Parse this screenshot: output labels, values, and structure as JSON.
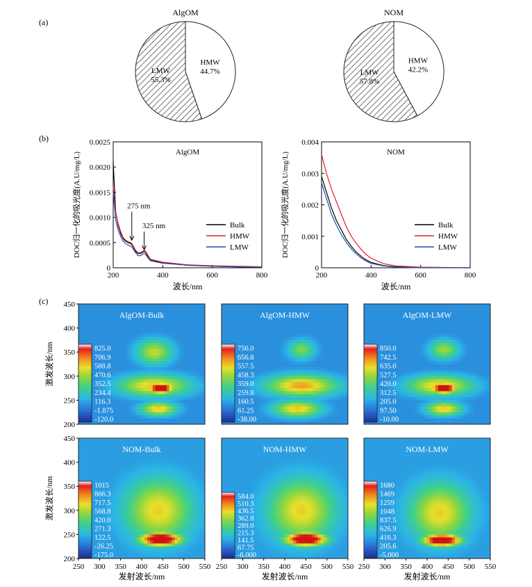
{
  "panel_labels": {
    "a": "(a)",
    "b": "(b)",
    "c": "(c)"
  },
  "chart_data": [
    {
      "type": "pie",
      "title": "AlgOM",
      "slices": [
        {
          "label": "HMW",
          "value": 44.7,
          "value_text": "44.7%",
          "fill": "white"
        },
        {
          "label": "LMW",
          "value": 55.3,
          "value_text": "55.3%",
          "fill": "hatched"
        }
      ]
    },
    {
      "type": "pie",
      "title": "NOM",
      "slices": [
        {
          "label": "HMW",
          "value": 42.2,
          "value_text": "42.2%",
          "fill": "white"
        },
        {
          "label": "LMW",
          "value": 57.8,
          "value_text": "57.8%",
          "fill": "hatched"
        }
      ]
    },
    {
      "type": "line",
      "title": "AlgOM",
      "xlabel": "波长/nm",
      "ylabel": "DOC归一化的吸光度(A.U/mg/L)",
      "xlim": [
        200,
        800
      ],
      "ylim": [
        0,
        0.0025
      ],
      "xticks": [
        "200",
        "400",
        "600",
        "800"
      ],
      "yticks": [
        "0",
        "0.0005",
        "0.0010",
        "0.0015",
        "0.0020",
        "0.0025"
      ],
      "legend_position": "bottom-right",
      "annotations": [
        {
          "text": "275 nm",
          "x": 275,
          "y": 0.00052
        },
        {
          "text": "325 nm",
          "x": 325,
          "y": 0.00033
        }
      ],
      "series": [
        {
          "name": "Bulk",
          "color": "#000000",
          "points": [
            [
              200,
              0.0021
            ],
            [
              210,
              0.0011
            ],
            [
              220,
              0.00085
            ],
            [
              230,
              0.00068
            ],
            [
              240,
              0.00058
            ],
            [
              250,
              0.00053
            ],
            [
              260,
              0.0005
            ],
            [
              270,
              0.00048
            ],
            [
              275,
              0.00046
            ],
            [
              280,
              0.00042
            ],
            [
              290,
              0.00033
            ],
            [
              300,
              0.00028
            ],
            [
              310,
              0.00028
            ],
            [
              320,
              0.00031
            ],
            [
              325,
              0.00032
            ],
            [
              330,
              0.00031
            ],
            [
              340,
              0.00023
            ],
            [
              350,
              0.00016
            ],
            [
              400,
              0.0001
            ],
            [
              500,
              5e-05
            ],
            [
              600,
              3e-05
            ],
            [
              700,
              2e-05
            ],
            [
              800,
              1e-05
            ]
          ]
        },
        {
          "name": "HMW",
          "color": "#e02020",
          "points": [
            [
              200,
              0.0016
            ],
            [
              210,
              0.0011
            ],
            [
              220,
              0.00088
            ],
            [
              230,
              0.00072
            ],
            [
              240,
              0.0006
            ],
            [
              250,
              0.00055
            ],
            [
              260,
              0.00052
            ],
            [
              270,
              0.0005
            ],
            [
              275,
              0.00048
            ],
            [
              280,
              0.00044
            ],
            [
              290,
              0.00035
            ],
            [
              300,
              0.0003
            ],
            [
              310,
              0.0003
            ],
            [
              320,
              0.00033
            ],
            [
              325,
              0.00035
            ],
            [
              330,
              0.00033
            ],
            [
              340,
              0.00025
            ],
            [
              350,
              0.00017
            ],
            [
              400,
              0.00011
            ],
            [
              500,
              6e-05
            ],
            [
              600,
              4e-05
            ],
            [
              700,
              3e-05
            ],
            [
              800,
              2e-05
            ]
          ]
        },
        {
          "name": "LMW",
          "color": "#1f4fb4",
          "points": [
            [
              200,
              0.0015
            ],
            [
              210,
              0.00095
            ],
            [
              220,
              0.00075
            ],
            [
              230,
              0.00062
            ],
            [
              240,
              0.00053
            ],
            [
              250,
              0.00048
            ],
            [
              260,
              0.00045
            ],
            [
              270,
              0.00043
            ],
            [
              275,
              0.00041
            ],
            [
              280,
              0.00038
            ],
            [
              290,
              0.0003
            ],
            [
              300,
              0.00024
            ],
            [
              310,
              0.00024
            ],
            [
              320,
              0.00027
            ],
            [
              325,
              0.00028
            ],
            [
              330,
              0.00027
            ],
            [
              340,
              0.0002
            ],
            [
              350,
              0.00014
            ],
            [
              400,
              9e-05
            ],
            [
              500,
              5e-05
            ],
            [
              600,
              3e-05
            ],
            [
              700,
              2e-05
            ],
            [
              800,
              1e-05
            ]
          ]
        }
      ]
    },
    {
      "type": "line",
      "title": "NOM",
      "xlabel": "波长/nm",
      "ylabel": "DOC归一化的吸光度(A.U/mg/L)",
      "xlim": [
        200,
        800
      ],
      "ylim": [
        0,
        0.004
      ],
      "xticks": [
        "200",
        "400",
        "600",
        "800"
      ],
      "yticks": [
        "0",
        "0.001",
        "0.002",
        "0.003",
        "0.004"
      ],
      "legend_position": "bottom-right",
      "series": [
        {
          "name": "Bulk",
          "color": "#000000",
          "points": [
            [
              200,
              0.0029
            ],
            [
              220,
              0.0024
            ],
            [
              240,
              0.0019
            ],
            [
              260,
              0.0015
            ],
            [
              280,
              0.0012
            ],
            [
              300,
              0.0009
            ],
            [
              320,
              0.00068
            ],
            [
              340,
              0.0005
            ],
            [
              360,
              0.00036
            ],
            [
              380,
              0.00025
            ],
            [
              400,
              0.00017
            ],
            [
              450,
              7e-05
            ],
            [
              500,
              3e-05
            ],
            [
              600,
              1e-05
            ],
            [
              800,
              0
            ]
          ]
        },
        {
          "name": "HMW",
          "color": "#e02020",
          "points": [
            [
              200,
              0.0036
            ],
            [
              220,
              0.003
            ],
            [
              240,
              0.0025
            ],
            [
              260,
              0.0021
            ],
            [
              280,
              0.0017
            ],
            [
              300,
              0.0013
            ],
            [
              320,
              0.001
            ],
            [
              340,
              0.00078
            ],
            [
              360,
              0.00058
            ],
            [
              380,
              0.00042
            ],
            [
              400,
              0.0003
            ],
            [
              450,
              0.00013
            ],
            [
              500,
              6e-05
            ],
            [
              600,
              2e-05
            ],
            [
              800,
              0
            ]
          ]
        },
        {
          "name": "LMW",
          "color": "#1f4fb4",
          "points": [
            [
              200,
              0.0027
            ],
            [
              220,
              0.0022
            ],
            [
              240,
              0.0017
            ],
            [
              260,
              0.00135
            ],
            [
              280,
              0.00105
            ],
            [
              300,
              0.0008
            ],
            [
              320,
              0.0006
            ],
            [
              340,
              0.00044
            ],
            [
              360,
              0.00031
            ],
            [
              380,
              0.00021
            ],
            [
              400,
              0.00014
            ],
            [
              450,
              6e-05
            ],
            [
              500,
              2e-05
            ],
            [
              600,
              0
            ],
            [
              800,
              0
            ]
          ]
        }
      ]
    },
    {
      "type": "heatmap",
      "title": "AlgOM-Bulk",
      "xlabel": "",
      "ylabel": "激发波长/nm",
      "xlim": [
        250,
        550
      ],
      "ylim": [
        200,
        450
      ],
      "xticks": [],
      "yticks": [
        "200",
        "250",
        "300",
        "350",
        "400",
        "450"
      ],
      "colorbar_labels": [
        "825.0",
        "706.9",
        "588.8",
        "470.6",
        "352.5",
        "234.4",
        "116.3",
        "-1.875",
        "-120.0"
      ],
      "peaks": [
        {
          "em": 445,
          "ex": 275,
          "level": 1.0,
          "sx": 22,
          "sy": 8
        },
        {
          "em": 430,
          "ex": 280,
          "level": 0.55,
          "sx": 60,
          "sy": 16
        },
        {
          "em": 430,
          "ex": 350,
          "level": 0.45,
          "sx": 30,
          "sy": 18
        },
        {
          "em": 440,
          "ex": 232,
          "level": 0.55,
          "sx": 30,
          "sy": 10
        }
      ],
      "background_level": 0.22
    },
    {
      "type": "heatmap",
      "title": "AlgOM-HMW",
      "xlabel": "",
      "ylabel": "",
      "xlim": [
        250,
        550
      ],
      "ylim": [
        200,
        450
      ],
      "xticks": [],
      "yticks": [],
      "colorbar_labels": [
        "756.0",
        "656.8",
        "557.5",
        "458.3",
        "359.0",
        "259.8",
        "160.5",
        "61.25",
        "-38.00"
      ],
      "peaks": [
        {
          "em": 440,
          "ex": 280,
          "level": 0.6,
          "sx": 60,
          "sy": 16
        },
        {
          "em": 440,
          "ex": 355,
          "level": 0.35,
          "sx": 22,
          "sy": 14
        },
        {
          "em": 430,
          "ex": 232,
          "level": 0.55,
          "sx": 40,
          "sy": 12
        }
      ],
      "background_level": 0.22
    },
    {
      "type": "heatmap",
      "title": "AlgOM-LMW",
      "xlabel": "",
      "ylabel": "",
      "xlim": [
        250,
        550
      ],
      "ylim": [
        200,
        450
      ],
      "xticks": [],
      "yticks": [],
      "colorbar_labels": [
        "850.0",
        "742.5",
        "635.0",
        "527.5",
        "420.0",
        "312.5",
        "205.0",
        "97.50",
        "-10.00"
      ],
      "peaks": [
        {
          "em": 440,
          "ex": 275,
          "level": 1.0,
          "sx": 22,
          "sy": 8
        },
        {
          "em": 430,
          "ex": 280,
          "level": 0.55,
          "sx": 55,
          "sy": 15
        },
        {
          "em": 440,
          "ex": 355,
          "level": 0.4,
          "sx": 24,
          "sy": 14
        },
        {
          "em": 440,
          "ex": 232,
          "level": 0.55,
          "sx": 30,
          "sy": 10
        }
      ],
      "background_level": 0.22
    },
    {
      "type": "heatmap",
      "title": "NOM-Bulk",
      "xlabel": "",
      "ylabel": "激发波长/nm",
      "xlim": [
        250,
        550
      ],
      "ylim": [
        200,
        450
      ],
      "xticks": [],
      "yticks": [
        "200",
        "250",
        "300",
        "350",
        "400",
        "450"
      ],
      "colorbar_labels": [
        "1015",
        "866.3",
        "717.5",
        "568.8",
        "420.0",
        "271.3",
        "122.5",
        "-26.25",
        "-175.0"
      ],
      "peaks": [
        {
          "em": 445,
          "ex": 240,
          "level": 1.0,
          "sx": 35,
          "sy": 10
        },
        {
          "em": 440,
          "ex": 300,
          "level": 0.5,
          "sx": 55,
          "sy": 45
        }
      ],
      "background_level": 0.25
    },
    {
      "type": "heatmap",
      "title": "NOM-HMW",
      "xlabel": "",
      "ylabel": "",
      "xlim": [
        250,
        550
      ],
      "ylim": [
        200,
        450
      ],
      "xticks": [],
      "yticks": [],
      "colorbar_labels": [
        "584.0",
        "510.3",
        "436.5",
        "362.8",
        "289.0",
        "215.3",
        "141.5",
        "67.75",
        "-6.000"
      ],
      "peaks": [
        {
          "em": 450,
          "ex": 240,
          "level": 1.0,
          "sx": 35,
          "sy": 10
        },
        {
          "em": 440,
          "ex": 300,
          "level": 0.5,
          "sx": 55,
          "sy": 45
        }
      ],
      "background_level": 0.25
    },
    {
      "type": "heatmap",
      "title": "NOM-LMW",
      "xlabel": "",
      "ylabel": "",
      "xlim": [
        250,
        550
      ],
      "ylim": [
        200,
        450
      ],
      "xticks": [],
      "yticks": [],
      "colorbar_labels": [
        "1680",
        "1469",
        "1259",
        "1048",
        "837.5",
        "626.9",
        "416.3",
        "205.6",
        "-5.000"
      ],
      "peaks": [
        {
          "em": 435,
          "ex": 238,
          "level": 1.0,
          "sx": 32,
          "sy": 9
        },
        {
          "em": 430,
          "ex": 295,
          "level": 0.5,
          "sx": 50,
          "sy": 42
        }
      ],
      "background_level": 0.25
    }
  ],
  "shared_axes": {
    "heatmap_xticks": [
      "250",
      "300",
      "350",
      "400",
      "450",
      "500",
      "550"
    ],
    "heatmap_xlabel": "发射波长/nm"
  }
}
